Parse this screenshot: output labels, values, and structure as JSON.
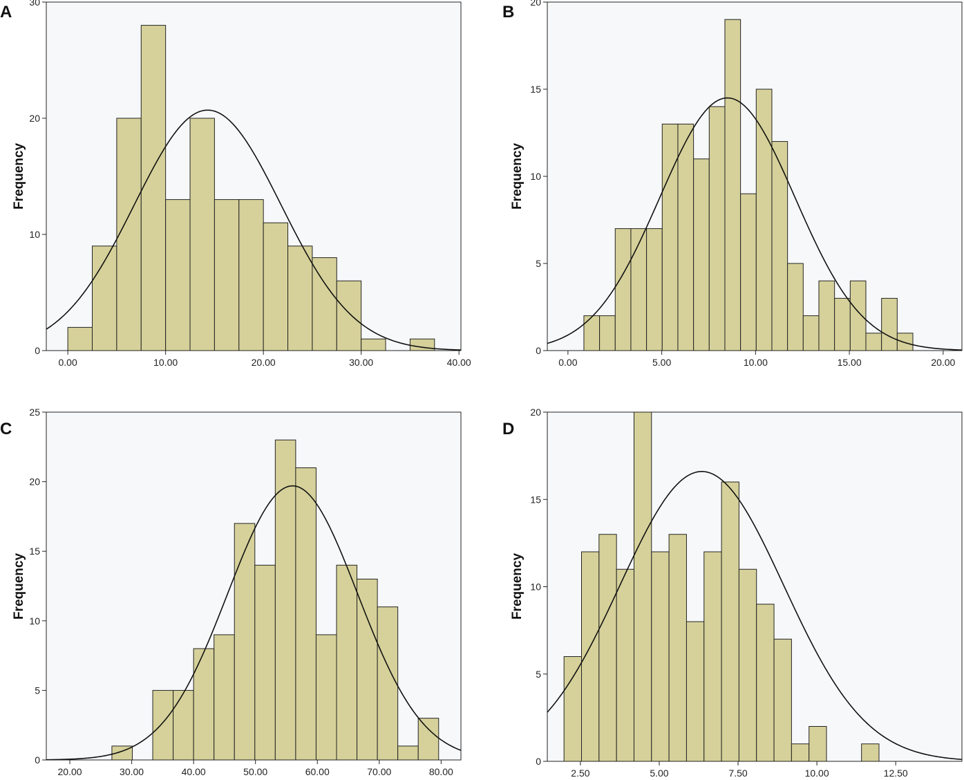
{
  "figure": {
    "ylabel": "Frequency"
  },
  "chart_data": [
    {
      "panel": "A",
      "type": "bar",
      "subtype": "histogram",
      "ylabel": "Frequency",
      "xlim": [
        -2.2,
        40.2
      ],
      "ylim": [
        0,
        30
      ],
      "xticks": [
        0,
        10,
        20,
        30,
        40
      ],
      "xtick_labels": [
        "0.00",
        "10.00",
        "20.00",
        "30.00",
        "40.00"
      ],
      "yticks": [
        0,
        10,
        20,
        30
      ],
      "bin_start": 0,
      "bin_width": 2.5,
      "counts": [
        2,
        9,
        20,
        28,
        13,
        20,
        13,
        13,
        11,
        9,
        8,
        6,
        1,
        0,
        1
      ],
      "normal_curve": {
        "mean": 14.3,
        "peak": 20.7,
        "sd": 7.5
      }
    },
    {
      "panel": "B",
      "type": "bar",
      "subtype": "histogram",
      "ylabel": "Frequency",
      "xlim": [
        -1.1,
        21.0
      ],
      "ylim": [
        0,
        20
      ],
      "xticks": [
        0,
        5,
        10,
        15,
        20
      ],
      "xtick_labels": [
        "0.00",
        "5.00",
        "10.00",
        "15.00",
        "20.00"
      ],
      "yticks": [
        0,
        5,
        10,
        15,
        20
      ],
      "bin_start": 0.85,
      "bin_width": 0.835,
      "counts": [
        2,
        2,
        7,
        7,
        7,
        13,
        13,
        11,
        14,
        19,
        9,
        15,
        12,
        5,
        2,
        4,
        3,
        4,
        1,
        3,
        1
      ],
      "normal_curve": {
        "mean": 8.5,
        "peak": 14.5,
        "sd": 3.6
      }
    },
    {
      "panel": "C",
      "type": "bar",
      "subtype": "histogram",
      "ylabel": "Frequency",
      "xlim": [
        16.2,
        83.2
      ],
      "ylim": [
        0,
        25
      ],
      "xticks": [
        20,
        30,
        40,
        50,
        60,
        70,
        80
      ],
      "xtick_labels": [
        "20.00",
        "30.00",
        "40.00",
        "50.00",
        "60.00",
        "70.00",
        "80.00"
      ],
      "yticks": [
        0,
        5,
        10,
        15,
        20,
        25
      ],
      "bin_start": 26.8,
      "bin_width": 3.3,
      "counts": [
        1,
        0,
        5,
        5,
        8,
        9,
        17,
        14,
        23,
        21,
        9,
        14,
        13,
        11,
        1,
        3
      ],
      "normal_curve": {
        "mean": 56,
        "peak": 19.7,
        "sd": 10.5
      }
    },
    {
      "panel": "D",
      "type": "bar",
      "subtype": "histogram",
      "ylabel": "Frequency",
      "xlim": [
        1.45,
        14.6
      ],
      "ylim": [
        0,
        20
      ],
      "xticks": [
        2.5,
        5,
        7.5,
        10,
        12.5
      ],
      "xtick_labels": [
        "2.50",
        "5.00",
        "7.50",
        "10.00",
        "12.50"
      ],
      "yticks": [
        0,
        5,
        10,
        15,
        20
      ],
      "bin_start": 1.98,
      "bin_width": 0.555,
      "counts": [
        6,
        12,
        13,
        11,
        20,
        12,
        13,
        8,
        12,
        16,
        11,
        9,
        7,
        1,
        2,
        0,
        0,
        1
      ],
      "normal_curve": {
        "mean": 6.35,
        "peak": 16.6,
        "sd": 2.6
      }
    }
  ]
}
